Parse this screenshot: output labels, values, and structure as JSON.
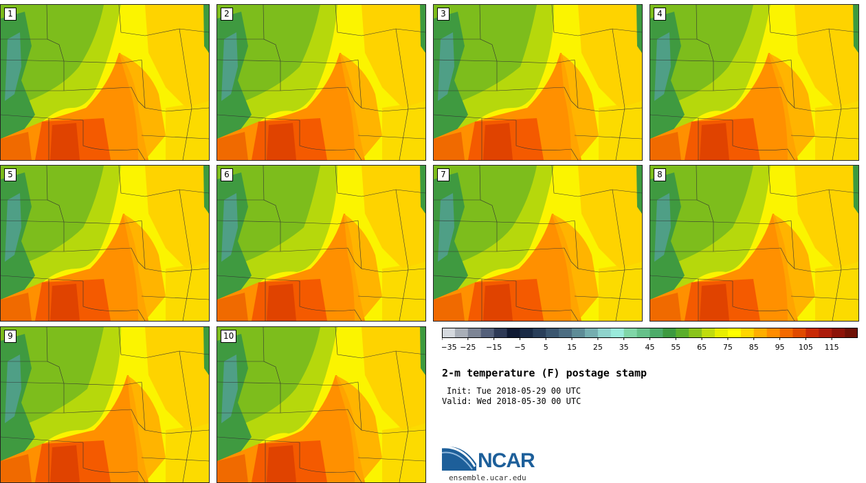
{
  "members": [
    "1",
    "2",
    "3",
    "4",
    "5",
    "6",
    "7",
    "8",
    "9",
    "10"
  ],
  "colorbar": {
    "colors": [
      "#d5d9de",
      "#a9afb8",
      "#7d8595",
      "#54607a",
      "#2e3a56",
      "#0f1a33",
      "#1a2b45",
      "#2a3f5a",
      "#3b566f",
      "#4c6d82",
      "#5e8c97",
      "#75aeb0",
      "#8fd3cc",
      "#9aeadb",
      "#80d6a8",
      "#66c18a",
      "#4dac6a",
      "#3d9a3f",
      "#5aae2c",
      "#8ac41c",
      "#c0dc0e",
      "#e8ef00",
      "#ffff00",
      "#ffd600",
      "#ffae00",
      "#ff8c00",
      "#f46a00",
      "#e04a00",
      "#c82a06",
      "#ac1c0c",
      "#8d1308",
      "#6e1005"
    ],
    "tick_labels": [
      "−35",
      "−25",
      "−15",
      "−5",
      "5",
      "15",
      "25",
      "35",
      "45",
      "55",
      "65",
      "75",
      "85",
      "95",
      "105",
      "115"
    ]
  },
  "title": "2-m temperature (F) postage stamp",
  "init": "Init: Tue 2018-05-29 00 UTC",
  "valid": "Valid: Wed 2018-05-30 00 UTC",
  "logo": {
    "name": "NCAR",
    "url": "ensemble.ucar.edu"
  }
}
